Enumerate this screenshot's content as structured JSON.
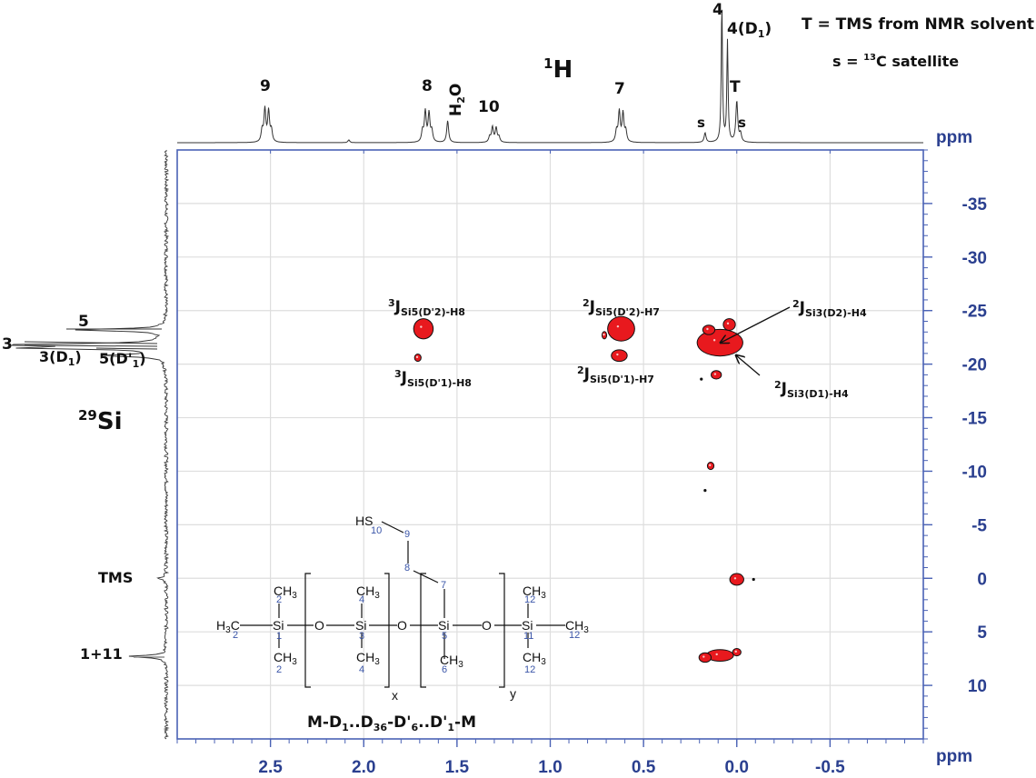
{
  "chart_data": {
    "type": "heatmap",
    "subtype": "2D 1H-29Si HMBC NMR contour plot",
    "x_axis": {
      "nucleus_label": "1H",
      "unit": "ppm",
      "range": [
        3.0,
        -1.0
      ],
      "reversed": true,
      "ticks": [
        2.5,
        2.0,
        1.5,
        1.0,
        0.5,
        0.0,
        -0.5
      ],
      "tick_labels": [
        "2.5",
        "2.0",
        "1.5",
        "1.0",
        "0.5",
        "0.0",
        "-0.5"
      ]
    },
    "y_axis": {
      "nucleus_label": "29Si",
      "unit": "ppm",
      "range": [
        -40,
        15
      ],
      "reversed": true,
      "ticks": [
        -35,
        -30,
        -25,
        -20,
        -15,
        -10,
        -5,
        0,
        5,
        10
      ],
      "tick_labels": [
        "-35",
        "-30",
        "-25",
        "-20",
        "-15",
        "-10",
        "-5",
        "0",
        "5",
        "10"
      ]
    },
    "grid": true,
    "h1_projection": {
      "peaks": [
        {
          "label": "9",
          "ppm": 2.52,
          "height": 0.28
        },
        {
          "label": "",
          "ppm": 2.08,
          "height": 0.02
        },
        {
          "label": "8",
          "ppm": 1.66,
          "height": 0.26
        },
        {
          "label": "H2O",
          "ppm": 1.55,
          "height": 0.16
        },
        {
          "label": "10",
          "ppm": 1.3,
          "height": 0.13
        },
        {
          "label": "7",
          "ppm": 0.62,
          "height": 0.26
        },
        {
          "label": "s",
          "ppm": 0.17,
          "height": 0.07
        },
        {
          "label": "4",
          "ppm": 0.08,
          "height": 1.0
        },
        {
          "label": "4(D1)",
          "ppm": 0.05,
          "height": 0.74
        },
        {
          "label": "T",
          "ppm": 0.0,
          "height": 0.3
        },
        {
          "label": "s",
          "ppm": -0.02,
          "height": 0.06
        }
      ]
    },
    "si29_projection": {
      "peaks": [
        {
          "label": "5",
          "ppm": -23.2,
          "height": 0.6
        },
        {
          "label": "3",
          "ppm": -21.8,
          "height": 1.0
        },
        {
          "label": "3(D1)",
          "ppm": -21.5,
          "height": 0.85
        },
        {
          "label": "5(D'1)",
          "ppm": -20.8,
          "height": 0.4
        },
        {
          "label": "TMS",
          "ppm": 0.0,
          "height": 0.05
        },
        {
          "label": "1+11",
          "ppm": 7.3,
          "height": 0.25
        }
      ]
    },
    "cross_peaks": [
      {
        "h": 1.68,
        "si": -23.3,
        "rx": 0.05,
        "ry": 0.9
      },
      {
        "h": 1.71,
        "si": -20.6,
        "rx": 0.015,
        "ry": 0.3
      },
      {
        "h": 0.62,
        "si": -23.3,
        "rx": 0.07,
        "ry": 1.1
      },
      {
        "h": 0.71,
        "si": -22.7,
        "rx": 0.01,
        "ry": 0.3
      },
      {
        "h": 0.63,
        "si": -20.8,
        "rx": 0.04,
        "ry": 0.5
      },
      {
        "h": 0.09,
        "si": -22.0,
        "rx": 0.12,
        "ry": 1.2
      },
      {
        "h": 0.04,
        "si": -23.7,
        "rx": 0.03,
        "ry": 0.5
      },
      {
        "h": 0.15,
        "si": -23.2,
        "rx": 0.03,
        "ry": 0.4
      },
      {
        "h": 0.11,
        "si": -19.0,
        "rx": 0.025,
        "ry": 0.35
      },
      {
        "h": 0.14,
        "si": -10.5,
        "rx": 0.015,
        "ry": 0.3
      },
      {
        "h": 0.0,
        "si": 0.1,
        "rx": 0.035,
        "ry": 0.5
      },
      {
        "h": 0.09,
        "si": 7.2,
        "rx": 0.07,
        "ry": 0.5
      },
      {
        "h": 0.17,
        "si": 7.4,
        "rx": 0.03,
        "ry": 0.4
      },
      {
        "h": 0.0,
        "si": 6.9,
        "rx": 0.02,
        "ry": 0.3
      }
    ],
    "small_black_dots": [
      {
        "h": 0.19,
        "si": -18.6
      },
      {
        "h": 0.17,
        "si": -8.2
      },
      {
        "h": -0.09,
        "si": 0.1
      }
    ],
    "annotations": [
      {
        "sup": "3",
        "main": "J",
        "sub": "Si5(D'2)-H8"
      },
      {
        "sup": "3",
        "main": "J",
        "sub": "Si5(D'1)-H8"
      },
      {
        "sup": "2",
        "main": "J",
        "sub": "Si5(D'2)-H7"
      },
      {
        "sup": "2",
        "main": "J",
        "sub": "Si5(D'1)-H7"
      },
      {
        "sup": "2",
        "main": "J",
        "sub": "Si3(D2)-H4"
      },
      {
        "sup": "2",
        "main": "J",
        "sub": "Si3(D1)-H4"
      }
    ],
    "legend_notes": [
      "T = TMS from NMR solvent",
      "s = 13C satellite"
    ],
    "structure_formula": {
      "prefix": "M-D",
      "sub1": "1",
      "mid1": "..D",
      "sub2": "36",
      "mid2": "-D'",
      "sub3": "6",
      "mid3": "..D'",
      "sub4": "1",
      "suffix": "-M"
    }
  },
  "labels": {
    "h1_title_sup": "1",
    "h1_title": "H",
    "si_title_sup": "29",
    "si_title": "Si",
    "ppm": "ppm",
    "peak9": "9",
    "peak8": "8",
    "peak_h2o_h": "H",
    "peak_h2o_2": "2",
    "peak_h2o_o": "O",
    "peak10": "10",
    "peak7": "7",
    "peak_s": "s",
    "peak4": "4",
    "peak4d1": "4(D",
    "peak4d1_sub": "1",
    "peak4d1_close": ")",
    "peakT": "T",
    "legend1": "T = TMS from NMR solvent",
    "legend2_a": "s = ",
    "legend2_sup": "13",
    "legend2_b": "C satellite",
    "si5": "5",
    "si3": "3",
    "si3d1": "3(D",
    "si3d1_sub": "1",
    "si3d1_close": ")",
    "si5d1": "5(D'",
    "si5d1_sub": "1",
    "si5d1_close": ")",
    "tms": "TMS",
    "m": "1+11"
  },
  "structure": {
    "hs": "HS",
    "si": "Si",
    "o": "O",
    "ch3": "CH",
    "three": "3",
    "h3c_h": "H",
    "h3c_c": "C",
    "x": "x",
    "y": "y",
    "n1": "1",
    "n2": "2",
    "n3": "3",
    "n4": "4",
    "n5": "5",
    "n6": "6",
    "n7": "7",
    "n8": "8",
    "n9": "9",
    "n10": "10",
    "n11": "11",
    "n12": "12"
  },
  "colors": {
    "axis": "#4a62b5",
    "axis_text": "#2a3f8f",
    "contour": "#e8191e",
    "grid": "#dedede",
    "spectrum": "#333333",
    "structure_numbers": "#3a55a8"
  }
}
